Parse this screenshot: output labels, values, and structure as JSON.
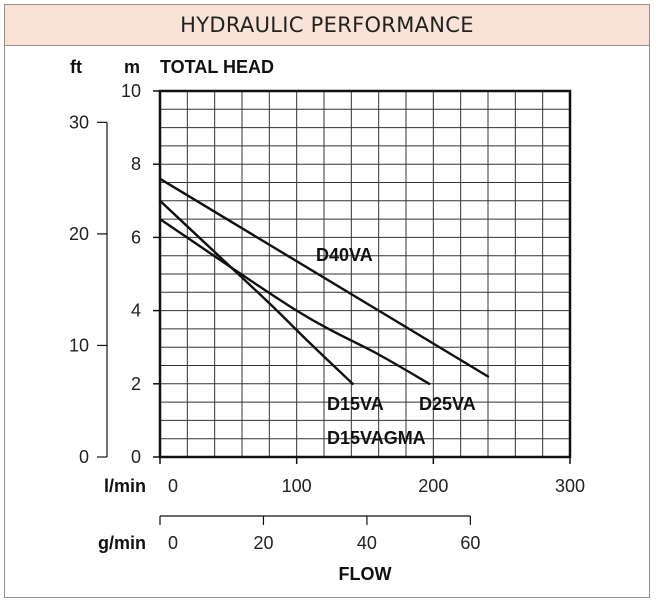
{
  "header": {
    "title": "HYDRAULIC PERFORMANCE"
  },
  "chart_data": {
    "type": "line",
    "title": "HYDRAULIC PERFORMANCE",
    "ylabel": "TOTAL HEAD",
    "xlabel": "FLOW",
    "y_units": {
      "primary": "m",
      "secondary": "ft"
    },
    "x_units": {
      "primary": "l/min",
      "secondary": "g/min"
    },
    "xlim": [
      0,
      300
    ],
    "ylim": [
      0,
      10
    ],
    "x_ticks": [
      0,
      100,
      200,
      300
    ],
    "y_ticks": [
      0,
      2,
      4,
      6,
      8,
      10
    ],
    "y_ticks_ft": [
      0,
      10,
      20,
      30
    ],
    "x_ticks_gpm": [
      0,
      20,
      40,
      60
    ],
    "grid": true,
    "series": [
      {
        "name": "D40VA",
        "points": [
          [
            0,
            7.6
          ],
          [
            240,
            2.2
          ]
        ]
      },
      {
        "name": "D25VA",
        "points": [
          [
            0,
            6.5
          ],
          [
            100,
            4.0
          ],
          [
            160,
            2.8
          ],
          [
            197,
            2.0
          ]
        ]
      },
      {
        "name": "D15VA",
        "points": [
          [
            0,
            7.0
          ],
          [
            40,
            5.6
          ],
          [
            80,
            4.2
          ],
          [
            110,
            3.1
          ],
          [
            141,
            2.0
          ]
        ]
      }
    ],
    "annotations": [
      {
        "text": "D40VA",
        "target": "D40VA"
      },
      {
        "text": "D15VA",
        "target": "D15VA"
      },
      {
        "text": "D25VA",
        "target": "D25VA"
      },
      {
        "text": "D15VAGMA",
        "target": "D15VA"
      }
    ]
  }
}
